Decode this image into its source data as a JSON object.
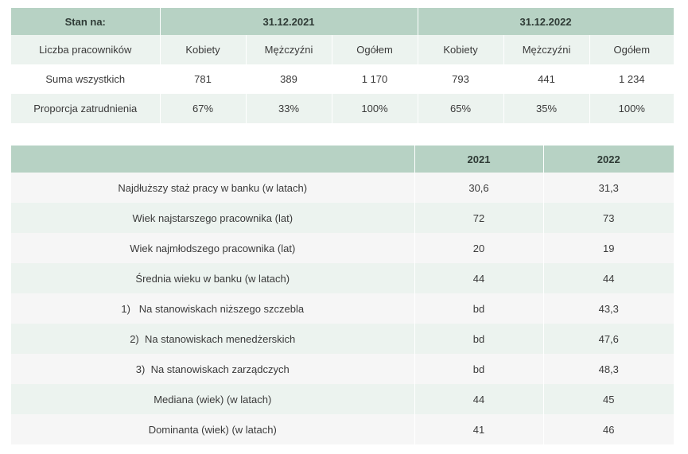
{
  "employees_table": {
    "header": {
      "label": "Stan na:",
      "date_2021": "31.12.2021",
      "date_2022": "31.12.2022"
    },
    "columns": {
      "label": "Liczba pracowników",
      "women_2021": "Kobiety",
      "men_2021": "Mężczyźni",
      "total_2021": "Ogółem",
      "women_2022": "Kobiety",
      "men_2022": "Mężczyźni",
      "total_2022": "Ogółem"
    },
    "rows": [
      {
        "label": "Suma wszystkich",
        "women_2021": "781",
        "men_2021": "389",
        "total_2021": "1 170",
        "women_2022": "793",
        "men_2022": "441",
        "total_2022": "1 234"
      },
      {
        "label": "Proporcja zatrudnienia",
        "women_2021": "67%",
        "men_2021": "33%",
        "total_2021": "100%",
        "women_2022": "65%",
        "men_2022": "35%",
        "total_2022": "100%"
      }
    ]
  },
  "stats_table": {
    "header": {
      "label": "",
      "y2021": "2021",
      "y2022": "2022"
    },
    "rows": [
      {
        "label": "Najdłuższy staż pracy w banku (w latach)",
        "y2021": "30,6",
        "y2022": "31,3"
      },
      {
        "label": "Wiek najstarszego pracownika (lat)",
        "y2021": "72",
        "y2022": "73"
      },
      {
        "label": "Wiek najmłodszego pracownika (lat)",
        "y2021": "20",
        "y2022": "19"
      },
      {
        "label": "Średnia wieku w banku (w latach)",
        "y2021": "44",
        "y2022": "44"
      },
      {
        "label": "1)   Na stanowiskach niższego szczebla",
        "y2021": "bd",
        "y2022": "43,3"
      },
      {
        "label": "2)  Na stanowiskach menedżerskich",
        "y2021": "bd",
        "y2022": "47,6"
      },
      {
        "label": "3)  Na stanowiskach zarządczych",
        "y2021": "bd",
        "y2022": "48,3"
      },
      {
        "label": "Mediana (wiek) (w latach)",
        "y2021": "44",
        "y2022": "45"
      },
      {
        "label": "Dominanta (wiek) (w latach)",
        "y2021": "41",
        "y2022": "46"
      }
    ]
  },
  "colors": {
    "header_bg": "#b7d2c4",
    "row_tint": "#ecf3ef",
    "row_light": "#f6f6f6",
    "text": "#3a3a3a"
  }
}
